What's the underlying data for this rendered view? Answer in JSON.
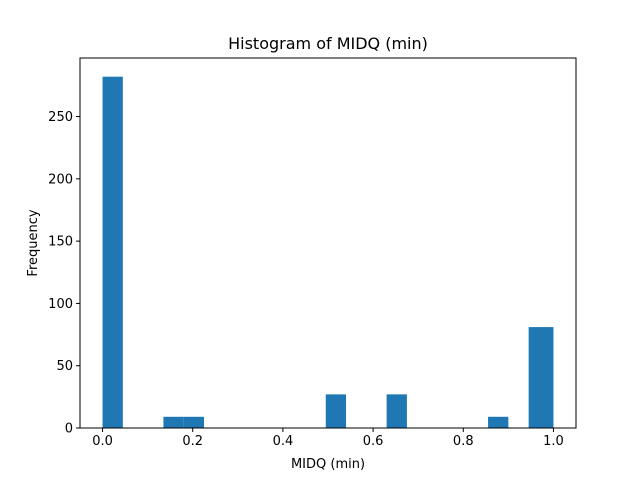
{
  "chart_data": {
    "type": "bar",
    "title": "Histogram of MIDQ (min)",
    "xlabel": "MIDQ (min)",
    "ylabel": "Frequency",
    "xlim": [
      -0.05,
      1.05
    ],
    "ylim": [
      0,
      297
    ],
    "x_ticks": [
      0.0,
      0.2,
      0.4,
      0.6,
      0.8,
      1.0
    ],
    "x_tick_labels": [
      "0.0",
      "0.2",
      "0.4",
      "0.6",
      "0.8",
      "1.0"
    ],
    "y_ticks": [
      0,
      50,
      100,
      150,
      200,
      250
    ],
    "y_tick_labels": [
      "0",
      "50",
      "100",
      "150",
      "200",
      "250"
    ],
    "bin_edges": [
      0.0,
      0.045,
      0.09,
      0.135,
      0.18,
      0.225,
      0.27,
      0.315,
      0.36,
      0.405,
      0.45,
      0.495,
      0.54,
      0.585,
      0.63,
      0.675,
      0.72,
      0.765,
      0.81,
      0.855,
      0.9,
      0.945,
      1.0
    ],
    "counts": [
      282,
      0,
      0,
      9,
      9,
      0,
      0,
      0,
      0,
      0,
      0,
      27,
      0,
      0,
      27,
      0,
      0,
      0,
      0,
      9,
      0,
      81
    ],
    "bar_color": "#1f77b4",
    "grid": false
  }
}
